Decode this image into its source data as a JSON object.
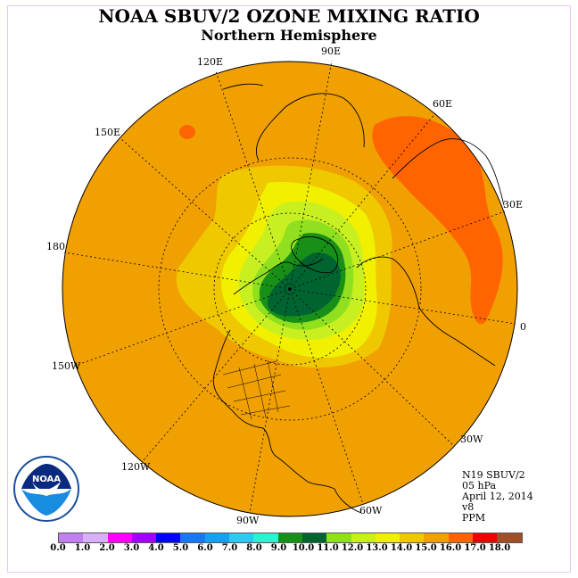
{
  "header": {
    "title": "NOAA SBUV/2 OZONE MIXING RATIO",
    "subtitle": "Northern Hemisphere"
  },
  "map": {
    "projection": "north polar stereographic",
    "longitude_labels": [
      "90E",
      "60E",
      "30E",
      "0",
      "30W",
      "60W",
      "90W",
      "120W",
      "150W",
      "180",
      "150E",
      "120E"
    ],
    "fields": {
      "background_value_range": "14.0-15.0",
      "max_region": "9.0-10.0 over Arctic near Greenland",
      "secondary_high": "15.0-16.0 over Siberia/Asia"
    }
  },
  "info": {
    "satellite": "N19 SBUV/2",
    "level": "05 hPa",
    "date": "April 12, 2014",
    "version": "v8",
    "units": "PPM"
  },
  "colorbar": {
    "colors": [
      "#c080f0",
      "#d8b0f8",
      "#ff00ff",
      "#a000ff",
      "#0000ff",
      "#1878f0",
      "#18a0f0",
      "#30c8f0",
      "#30f0d0",
      "#189018",
      "#006430",
      "#90e020",
      "#c8f020",
      "#f0f000",
      "#f0c800",
      "#f0a000",
      "#ff6400",
      "#f00000",
      "#a05028"
    ],
    "tick_labels": [
      "0.0",
      "1.0",
      "2.0",
      "3.0",
      "4.0",
      "5.0",
      "6.0",
      "7.0",
      "8.0",
      "9.0",
      "10.0",
      "11.0",
      "12.0",
      "13.0",
      "14.0",
      "15.0",
      "16.0",
      "17.0",
      "18.0"
    ]
  },
  "logo": {
    "text": "NOAA",
    "ring_text": "NATIONAL OCEANIC AND ATMOSPHERIC ADMINISTRATION U.S. DEPARTMENT OF COMMERCE"
  }
}
